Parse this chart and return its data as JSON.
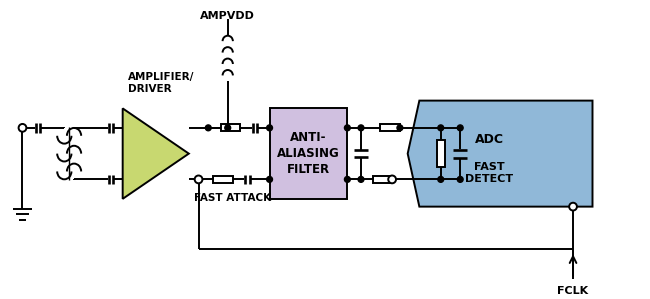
{
  "bg_color": "#ffffff",
  "fig_width": 6.5,
  "fig_height": 2.99,
  "dpi": 100,
  "amp_color": "#c8d870",
  "filter_color": "#d0c0e0",
  "adc_color": "#90b8d8",
  "line_color": "#000000",
  "text_color": "#000000",
  "labels": {
    "ampvdd": "AMPVDD",
    "amplifier": "AMPLIFIER/\nDRIVER",
    "fast_attack": "FAST ATTACK",
    "anti_aliasing": "ANTI-\nALIASING\nFILTER",
    "adc": "ADC",
    "fast_detect": "FAST\nDETECT",
    "fclk": "FCLK"
  }
}
